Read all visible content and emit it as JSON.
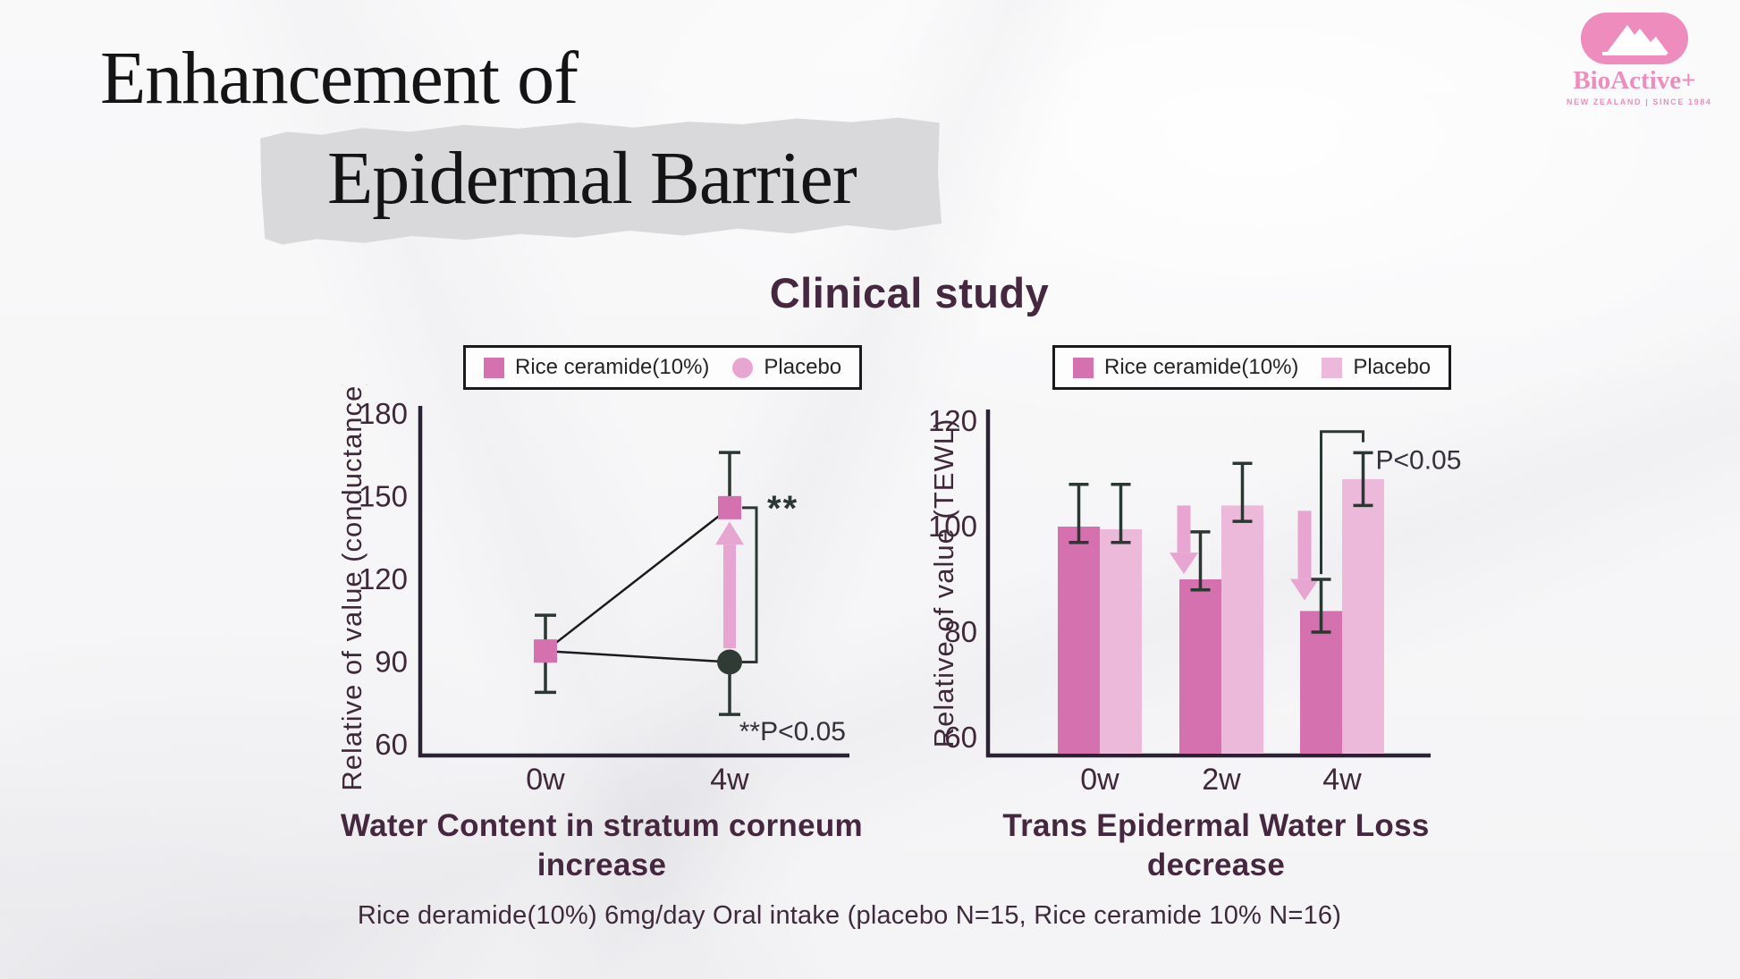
{
  "header": {
    "title_line1": "Enhancement of",
    "title_line2": "Epidermal Barrier"
  },
  "logo": {
    "brand": "BioActive+",
    "tagline": "NEW ZEALAND  |  SINCE 1984",
    "color": "#EE8CBE",
    "mountain_icon": "mountain-peaks"
  },
  "section_title": "Clinical study",
  "caption": "Rice deramide(10%) 6mg/day Oral intake (placebo N=15, Rice ceramide 10% N=16)",
  "colors": {
    "axis": "#2A2233",
    "tick_text": "#3E2839",
    "error_bar": "#2B3731",
    "data_line": "#1B1B1B",
    "note_text": "#35303A",
    "rice_pink": "#D671AF",
    "placebo_light_pink": "#ECB9DB",
    "arrow_pink": "#E7A6D2",
    "placebo_dark_marker": "#2F3B34",
    "heading_purple": "#45273F",
    "torn_paper_gray": "#D9D9DB"
  },
  "chart_data": [
    {
      "type": "line",
      "title": "Water Content in stratum corneum increase",
      "ylabel": "Relative of value (conductance)",
      "categories": [
        "0w",
        "4w"
      ],
      "ylim": [
        60,
        180
      ],
      "yticks": [
        180,
        150,
        120,
        90,
        60
      ],
      "grid": false,
      "legend": [
        {
          "label": "Rice ceramide(10%)",
          "marker": "square",
          "color": "#D671AF"
        },
        {
          "label": "Placebo",
          "marker": "circle",
          "color": "#E7A6D2"
        }
      ],
      "series": [
        {
          "name": "Rice ceramide(10%)",
          "marker": "square",
          "color": "#D671AF",
          "points": [
            {
              "x": "0w",
              "y": 94,
              "err_low": 79,
              "err_high": 107
            },
            {
              "x": "4w",
              "y": 146,
              "err_high": 166
            }
          ]
        },
        {
          "name": "Placebo",
          "marker": "circle",
          "color": "#2F3B34",
          "points": [
            {
              "x": "0w",
              "y": 94,
              "show_marker": false
            },
            {
              "x": "4w",
              "y": 90,
              "err_low": 71
            }
          ]
        }
      ],
      "arrow": {
        "direction": "up",
        "x": "4w",
        "from": 95,
        "to": 141,
        "color": "#E7A6D2"
      },
      "bracket": {
        "x": "4w",
        "from": 146,
        "to": 90,
        "label": "**"
      },
      "note": "**P<0.05"
    },
    {
      "type": "bar",
      "title": "Trans Epidermal Water Loss decrease",
      "ylabel": "Relative of value (TEWL)",
      "categories": [
        "0w",
        "2w",
        "4w"
      ],
      "ylim": [
        60,
        120
      ],
      "yticks": [
        120,
        100,
        80,
        60
      ],
      "grid": false,
      "legend": [
        {
          "label": "Rice ceramide(10%)",
          "marker": "square",
          "color": "#D671AF"
        },
        {
          "label": "Placebo",
          "marker": "square",
          "color": "#ECB9DB"
        }
      ],
      "series": [
        {
          "name": "Rice ceramide(10%)",
          "color": "#D671AF",
          "values": [
            100,
            90,
            84
          ],
          "err_low": [
            97,
            88,
            80
          ],
          "err_high": [
            108,
            99,
            90
          ]
        },
        {
          "name": "Placebo",
          "color": "#ECB9DB",
          "values": [
            99.5,
            104,
            109
          ],
          "err_low": [
            97,
            101,
            104
          ],
          "err_high": [
            108,
            112,
            114
          ]
        }
      ],
      "arrows": [
        {
          "direction": "down",
          "category": "2w",
          "from": 104,
          "to": 91,
          "color": "#E7A6D2"
        },
        {
          "direction": "down",
          "category": "4w",
          "from": 103,
          "to": 86,
          "color": "#E7A6D2"
        }
      ],
      "bracket": {
        "category": "4w",
        "top": 118,
        "left_end": 91,
        "right_end": 116,
        "label": "P<0.05"
      }
    }
  ]
}
